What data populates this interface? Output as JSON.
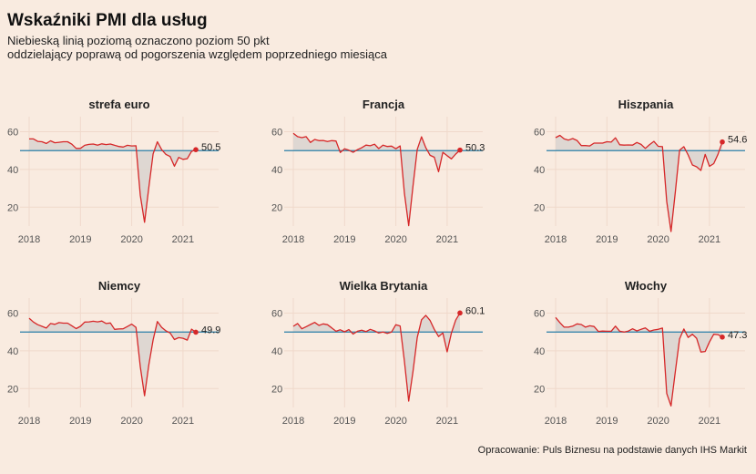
{
  "header": {
    "title": "Wskaźniki PMI dla usług",
    "subtitle_lines": [
      "Niebieską linią poziomą oznaczono poziom 50 pkt",
      "oddzielający poprawą od pogorszenia względem poprzedniego miesiąca"
    ]
  },
  "caption": "Opracowanie: Puls Biznesu na podstawie danych IHS Markit",
  "colors": {
    "background": "#f9ebe0",
    "line": "#d62728",
    "reference": "#2a7fa8",
    "fill": "#d9d3cf",
    "grid": "#f0d9cb"
  },
  "chart_data": [
    {
      "type": "line",
      "title": "strefa euro",
      "x_start": "2018-01",
      "x_end": "2021-04",
      "x_ticks": [
        "2018",
        "2019",
        "2020",
        "2021"
      ],
      "y_ticks": [
        20,
        40,
        60
      ],
      "ylim": [
        10,
        68
      ],
      "reference_line": 50,
      "end_label": "50.5",
      "values": [
        56.2,
        56.2,
        54.9,
        54.7,
        53.8,
        55.2,
        54.2,
        54.4,
        54.7,
        54.7,
        53.4,
        51.2,
        51.2,
        52.8,
        53.3,
        53.5,
        52.9,
        53.6,
        53.2,
        53.5,
        52.8,
        52.2,
        51.9,
        52.8,
        52.5,
        52.6,
        26.4,
        12.0,
        30.5,
        48.3,
        54.7,
        50.5,
        48.0,
        46.9,
        41.7,
        46.4,
        45.4,
        45.7,
        49.6,
        50.5
      ]
    },
    {
      "type": "line",
      "title": "Francja",
      "x_start": "2018-01",
      "x_end": "2021-04",
      "x_ticks": [
        "2018",
        "2019",
        "2020",
        "2021"
      ],
      "y_ticks": [
        20,
        40,
        60
      ],
      "ylim": [
        10,
        68
      ],
      "reference_line": 50,
      "end_label": "50.3",
      "values": [
        59.2,
        57.4,
        56.9,
        57.4,
        54.3,
        55.9,
        55.3,
        55.4,
        54.8,
        55.3,
        55.1,
        49.0,
        51.0,
        50.2,
        49.1,
        50.5,
        51.5,
        52.9,
        52.6,
        53.4,
        51.1,
        52.9,
        52.2,
        52.4,
        51.0,
        52.5,
        27.4,
        10.2,
        31.1,
        50.7,
        57.3,
        51.5,
        47.5,
        46.5,
        38.8,
        49.1,
        47.3,
        45.6,
        48.2,
        50.3
      ]
    },
    {
      "type": "line",
      "title": "Hiszpania",
      "x_start": "2018-01",
      "x_end": "2021-04",
      "x_ticks": [
        "2018",
        "2019",
        "2020",
        "2021"
      ],
      "y_ticks": [
        20,
        40,
        60
      ],
      "ylim": [
        10,
        68
      ],
      "reference_line": 50,
      "end_label": "54.6",
      "values": [
        56.9,
        58.1,
        56.2,
        55.6,
        56.4,
        55.4,
        52.7,
        52.7,
        52.5,
        54.0,
        54.0,
        54.0,
        54.7,
        54.5,
        56.8,
        53.1,
        52.9,
        53.0,
        52.9,
        54.3,
        53.3,
        51.2,
        53.2,
        54.9,
        52.3,
        52.1,
        23.0,
        7.1,
        27.9,
        50.2,
        52.1,
        47.7,
        42.4,
        41.4,
        39.5,
        48.0,
        41.7,
        43.1,
        48.1,
        54.6
      ]
    },
    {
      "type": "line",
      "title": "Niemcy",
      "x_start": "2018-01",
      "x_end": "2021-04",
      "x_ticks": [
        "2018",
        "2019",
        "2020",
        "2021"
      ],
      "y_ticks": [
        20,
        40,
        60
      ],
      "ylim": [
        10,
        68
      ],
      "reference_line": 50,
      "end_label": "49.9",
      "values": [
        57.3,
        55.3,
        53.9,
        53.0,
        52.1,
        54.5,
        54.1,
        55.0,
        54.7,
        54.7,
        53.3,
        51.8,
        53.0,
        55.3,
        55.4,
        55.7,
        55.4,
        55.8,
        54.5,
        54.8,
        51.4,
        51.6,
        51.7,
        52.9,
        54.2,
        52.5,
        31.7,
        16.2,
        32.6,
        45.8,
        55.6,
        52.5,
        50.6,
        49.5,
        46.0,
        47.0,
        46.7,
        45.7,
        51.5,
        49.9
      ]
    },
    {
      "type": "line",
      "title": "Wielka Brytania",
      "x_start": "2018-01",
      "x_end": "2021-04",
      "x_ticks": [
        "2018",
        "2019",
        "2020",
        "2021"
      ],
      "y_ticks": [
        20,
        40,
        60
      ],
      "ylim": [
        10,
        68
      ],
      "reference_line": 50,
      "end_label": "60.1",
      "values": [
        53.0,
        54.5,
        51.7,
        52.8,
        54.0,
        55.1,
        53.5,
        54.3,
        53.9,
        52.2,
        50.4,
        51.2,
        50.1,
        51.3,
        48.9,
        50.4,
        51.0,
        50.2,
        51.4,
        50.6,
        49.5,
        50.0,
        49.3,
        50.0,
        53.9,
        53.2,
        34.5,
        13.4,
        29.0,
        47.1,
        56.5,
        58.8,
        56.1,
        51.4,
        47.6,
        49.5,
        39.5,
        49.5,
        56.3,
        60.1
      ]
    },
    {
      "type": "line",
      "title": "Włochy",
      "x_start": "2018-01",
      "x_end": "2021-04",
      "x_ticks": [
        "2018",
        "2019",
        "2020",
        "2021"
      ],
      "y_ticks": [
        20,
        40,
        60
      ],
      "ylim": [
        10,
        68
      ],
      "reference_line": 50,
      "end_label": "47.3",
      "values": [
        57.7,
        55.0,
        52.6,
        52.6,
        53.1,
        54.3,
        54.0,
        52.6,
        53.3,
        52.9,
        50.3,
        50.5,
        50.4,
        50.4,
        53.1,
        50.4,
        50.0,
        50.5,
        51.7,
        50.6,
        51.4,
        52.2,
        50.4,
        51.1,
        51.4,
        52.1,
        17.4,
        10.8,
        28.9,
        46.4,
        51.6,
        47.1,
        48.8,
        46.7,
        39.4,
        39.7,
        44.7,
        48.8,
        48.6,
        47.3
      ]
    }
  ]
}
